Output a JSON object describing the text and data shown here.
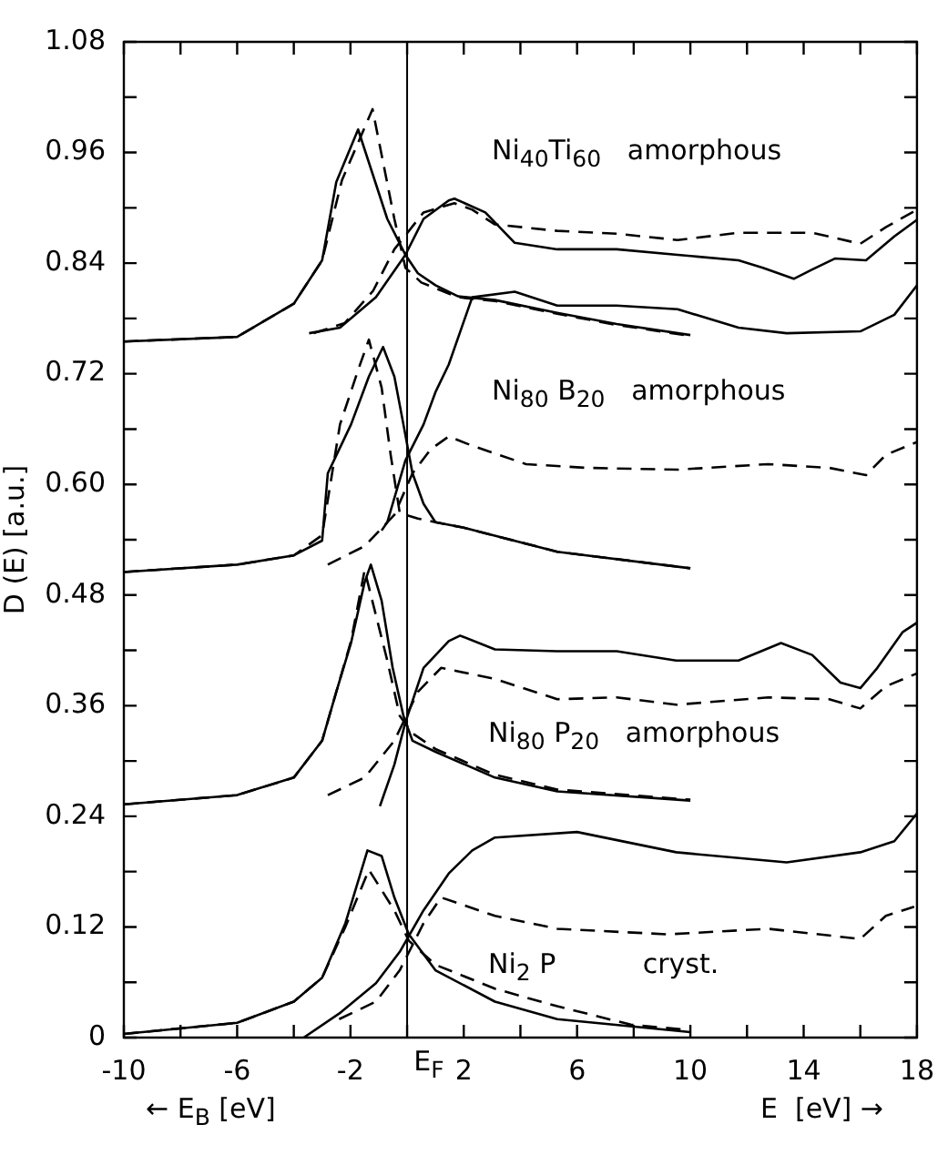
{
  "chart_data": {
    "type": "line",
    "ylabel": "D (E) [a.u.]",
    "marker": "none",
    "grid": false,
    "legend": false,
    "xlim": [
      -10,
      18
    ],
    "ylim": [
      0,
      1.08
    ],
    "xticks": [
      -10,
      {
        "value": -8,
        "label": null
      },
      -6,
      {
        "value": -4,
        "label": null
      },
      -2,
      {
        "value": 0,
        "label": null
      },
      2,
      {
        "value": 4,
        "label": null
      },
      6,
      {
        "value": 8,
        "label": null
      },
      10,
      {
        "value": 12,
        "label": null
      },
      14,
      {
        "value": 16,
        "label": null
      },
      18
    ],
    "yticks": [
      0,
      {
        "value": 0.06,
        "label": null
      },
      0.12,
      {
        "value": 0.18,
        "label": null
      },
      0.24,
      {
        "value": 0.3,
        "label": null
      },
      0.36,
      {
        "value": 0.42,
        "label": null
      },
      0.48,
      {
        "value": 0.54,
        "label": null
      },
      {
        "value": 0.6,
        "label": "0.60"
      },
      {
        "value": 0.66,
        "label": null
      },
      0.72,
      {
        "value": 0.78,
        "label": null
      },
      0.84,
      {
        "value": 0.9,
        "label": null
      },
      0.96,
      {
        "value": 1.02,
        "label": null
      },
      1.08
    ],
    "ref_lines": [
      {
        "axis": "x",
        "value": 0,
        "label": "E$_{F}$",
        "color": "#000000"
      }
    ],
    "annotations": [
      "Ni$_{40}$Ti$_{60}$   amorphous",
      "Ni$_{80}$ B$_{20}$   amorphous",
      "Ni$_{80}$ P$_{20}$   amorphous",
      "Ni$_{2}$ P          cryst.",
      "← E$_{B}$ [eV]",
      "E  [eV] →"
    ],
    "series": [
      {
        "color": "#000000",
        "line_style": "solid",
        "x": [
          -10,
          -6,
          -4,
          -3,
          -2.5,
          -1.73,
          -0.7,
          -0.06,
          0.38,
          1,
          1.8,
          3.1,
          5.3,
          7.4,
          10
        ],
        "values": [
          0.755,
          0.76,
          0.796,
          0.843,
          0.928,
          0.985,
          0.888,
          0.849,
          0.829,
          0.816,
          0.804,
          0.8,
          0.786,
          0.774,
          0.762
        ]
      },
      {
        "color": "#000000",
        "line_style": "dashed",
        "x": [
          -10,
          -6,
          -4,
          -3,
          -2.3,
          -1.22,
          -0.45,
          -0.06,
          0.5,
          1.8,
          3.1,
          5.3,
          7.4,
          10
        ],
        "values": [
          0.755,
          0.76,
          0.796,
          0.843,
          0.93,
          1.007,
          0.888,
          0.835,
          0.819,
          0.803,
          0.799,
          0.785,
          0.773,
          0.761
        ]
      },
      {
        "color": "#000000",
        "line_style": "solid",
        "x": [
          -3.46,
          -2.37,
          -1.1,
          -0.06,
          0.58,
          1.47,
          1.67,
          2.76,
          3.8,
          5.3,
          7.4,
          9.55,
          11.7,
          12.56,
          13.65,
          14.3,
          15.1,
          16.2,
          17.2,
          18
        ],
        "values": [
          0.764,
          0.77,
          0.803,
          0.849,
          0.888,
          0.908,
          0.91,
          0.895,
          0.862,
          0.855,
          0.855,
          0.849,
          0.843,
          0.835,
          0.823,
          0.833,
          0.845,
          0.843,
          0.869,
          0.887
        ]
      },
      {
        "color": "#000000",
        "line_style": "dashed",
        "x": [
          -3.3,
          -2.2,
          -1.2,
          -0.45,
          0.58,
          1.67,
          2.3,
          3.1,
          5.3,
          7.4,
          9.55,
          11.7,
          14.3,
          16,
          16.9,
          18
        ],
        "values": [
          0.764,
          0.775,
          0.81,
          0.855,
          0.895,
          0.905,
          0.898,
          0.882,
          0.875,
          0.872,
          0.865,
          0.873,
          0.873,
          0.861,
          0.879,
          0.898
        ]
      },
      {
        "color": "#000000",
        "line_style": "solid",
        "x": [
          -10,
          -6,
          -4,
          -3,
          -2.8,
          -1.98,
          -1.35,
          -0.85,
          -0.45,
          -0.13,
          0.19,
          0.58,
          1,
          2,
          5.3,
          10
        ],
        "values": [
          0.505,
          0.513,
          0.523,
          0.539,
          0.612,
          0.665,
          0.717,
          0.749,
          0.717,
          0.665,
          0.612,
          0.579,
          0.559,
          0.553,
          0.527,
          0.509
        ]
      },
      {
        "color": "#000000",
        "line_style": "dashed",
        "x": [
          -10,
          -6,
          -4,
          -3,
          -2.37,
          -1.73,
          -1.35,
          -0.9,
          -0.58,
          -0.26,
          0.38,
          1,
          2,
          5.3,
          10
        ],
        "values": [
          0.505,
          0.513,
          0.523,
          0.545,
          0.665,
          0.724,
          0.757,
          0.705,
          0.632,
          0.569,
          0.563,
          0.559,
          0.553,
          0.527,
          0.509
        ]
      },
      {
        "color": "#000000",
        "line_style": "solid",
        "x": [
          -0.9,
          -0.7,
          -0.06,
          0.58,
          1,
          1.47,
          2.3,
          3.8,
          5.3,
          7.4,
          9.55,
          11.7,
          13.4,
          16,
          17.2,
          18
        ],
        "values": [
          0.55,
          0.559,
          0.626,
          0.665,
          0.7,
          0.73,
          0.803,
          0.809,
          0.794,
          0.794,
          0.79,
          0.77,
          0.764,
          0.766,
          0.784,
          0.816
        ]
      },
      {
        "color": "#000000",
        "line_style": "dashed",
        "x": [
          -2.8,
          -1.5,
          -0.45,
          0.19,
          0.83,
          1.47,
          2.3,
          4.2,
          6.3,
          9.55,
          12.75,
          14.9,
          16.2,
          16.9,
          18
        ],
        "values": [
          0.513,
          0.533,
          0.567,
          0.612,
          0.638,
          0.652,
          0.642,
          0.622,
          0.618,
          0.616,
          0.622,
          0.618,
          0.61,
          0.632,
          0.646
        ]
      },
      {
        "color": "#000000",
        "line_style": "solid",
        "x": [
          -10,
          -6,
          -4,
          -3,
          -2.5,
          -1.98,
          -1.5,
          -1.28,
          -0.9,
          -0.51,
          -0.13,
          0.19,
          1,
          3.1,
          5.3,
          10
        ],
        "values": [
          0.253,
          0.263,
          0.282,
          0.322,
          0.375,
          0.428,
          0.494,
          0.513,
          0.474,
          0.401,
          0.349,
          0.322,
          0.31,
          0.282,
          0.267,
          0.257
        ]
      },
      {
        "color": "#000000",
        "line_style": "dashed",
        "x": [
          -10,
          -6,
          -4,
          -3,
          -2.5,
          -1.98,
          -1.5,
          -0.7,
          -0.26,
          0.19,
          1,
          3.1,
          5.3,
          10
        ],
        "values": [
          0.253,
          0.263,
          0.282,
          0.322,
          0.375,
          0.43,
          0.507,
          0.409,
          0.349,
          0.33,
          0.313,
          0.285,
          0.269,
          0.258
        ]
      },
      {
        "color": "#000000",
        "line_style": "solid",
        "x": [
          -0.96,
          -0.45,
          -0.06,
          0.58,
          1.47,
          1.87,
          3.1,
          5.3,
          7.4,
          9.5,
          11.7,
          13.2,
          14.3,
          15.3,
          16,
          16.6,
          17.5,
          18
        ],
        "values": [
          0.251,
          0.296,
          0.342,
          0.401,
          0.43,
          0.436,
          0.421,
          0.419,
          0.419,
          0.409,
          0.409,
          0.428,
          0.415,
          0.385,
          0.379,
          0.401,
          0.44,
          0.45
        ]
      },
      {
        "color": "#000000",
        "line_style": "dashed",
        "x": [
          -2.8,
          -1.5,
          -0.45,
          0.38,
          1.2,
          3.1,
          5.3,
          7.4,
          9.5,
          12.75,
          14.9,
          16,
          16.9,
          18
        ],
        "values": [
          0.263,
          0.282,
          0.322,
          0.375,
          0.401,
          0.389,
          0.367,
          0.369,
          0.361,
          0.369,
          0.367,
          0.357,
          0.381,
          0.395
        ]
      },
      {
        "color": "#000000",
        "line_style": "solid",
        "x": [
          -10,
          -6,
          -4,
          -3,
          -2.18,
          -1.4,
          -0.9,
          -0.45,
          0.06,
          1,
          3.1,
          5.3,
          10
        ],
        "values": [
          0.004,
          0.016,
          0.039,
          0.065,
          0.124,
          0.203,
          0.197,
          0.152,
          0.112,
          0.073,
          0.039,
          0.02,
          0.006
        ]
      },
      {
        "color": "#000000",
        "line_style": "dashed",
        "x": [
          -10,
          -6,
          -4,
          -3,
          -2.18,
          -1.35,
          -0.45,
          0.06,
          1,
          3.1,
          5.3,
          7.9,
          10
        ],
        "values": [
          0.004,
          0.016,
          0.039,
          0.065,
          0.12,
          0.182,
          0.138,
          0.105,
          0.079,
          0.053,
          0.034,
          0.014,
          0.008
        ]
      },
      {
        "color": "#000000",
        "line_style": "solid",
        "x": [
          -3.65,
          -2.4,
          -1.1,
          -0.26,
          0.58,
          1.47,
          2.3,
          3.1,
          6,
          9.5,
          13.4,
          16,
          17.2,
          18
        ],
        "values": [
          0,
          0.026,
          0.059,
          0.093,
          0.138,
          0.178,
          0.203,
          0.217,
          0.223,
          0.201,
          0.19,
          0.201,
          0.213,
          0.243
        ]
      },
      {
        "color": "#000000",
        "line_style": "dashed",
        "x": [
          -2.4,
          -1.1,
          -0.26,
          0.58,
          1.2,
          3.1,
          5.3,
          9.2,
          12.75,
          16,
          16.9,
          17.9
        ],
        "values": [
          0.02,
          0.039,
          0.073,
          0.124,
          0.152,
          0.132,
          0.118,
          0.112,
          0.118,
          0.107,
          0.132,
          0.142
        ]
      }
    ]
  }
}
